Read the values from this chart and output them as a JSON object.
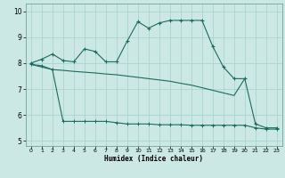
{
  "xlabel": "Humidex (Indice chaleur)",
  "background_color": "#cce8e4",
  "grid_color": "#aad4d0",
  "line_color": "#1a6b60",
  "xlim": [
    -0.5,
    23.5
  ],
  "ylim": [
    4.8,
    10.3
  ],
  "xticks": [
    0,
    1,
    2,
    3,
    4,
    5,
    6,
    7,
    8,
    9,
    10,
    11,
    12,
    13,
    14,
    15,
    16,
    17,
    18,
    19,
    20,
    21,
    22,
    23
  ],
  "yticks": [
    5,
    6,
    7,
    8,
    9,
    10
  ],
  "series1_x": [
    0,
    1,
    2,
    3,
    4,
    5,
    6,
    7,
    8,
    9,
    10,
    11,
    12,
    13,
    14,
    15,
    16,
    17,
    18,
    19,
    20,
    21,
    22,
    23
  ],
  "series1_y": [
    8.0,
    8.15,
    8.35,
    8.1,
    8.05,
    8.55,
    8.45,
    8.05,
    8.05,
    8.85,
    9.6,
    9.35,
    9.55,
    9.65,
    9.65,
    9.65,
    9.65,
    8.65,
    7.85,
    7.4,
    7.4,
    5.65,
    5.5,
    5.5
  ],
  "series2_x": [
    0,
    2,
    3,
    4,
    5,
    6,
    7,
    8,
    9,
    10,
    11,
    12,
    13,
    14,
    15,
    16,
    17,
    18,
    19,
    20
  ],
  "series2_y": [
    7.95,
    7.75,
    7.72,
    7.68,
    7.65,
    7.62,
    7.58,
    7.55,
    7.5,
    7.45,
    7.4,
    7.35,
    7.3,
    7.22,
    7.15,
    7.05,
    6.95,
    6.85,
    6.75,
    7.4
  ],
  "series3_x": [
    0,
    1,
    2,
    3,
    4,
    5,
    6,
    7,
    8,
    9,
    10,
    11,
    12,
    13,
    14,
    15,
    16,
    17,
    18,
    19,
    20,
    21,
    22,
    23
  ],
  "series3_y": [
    7.95,
    7.9,
    7.75,
    5.75,
    5.75,
    5.75,
    5.75,
    5.75,
    5.7,
    5.65,
    5.65,
    5.65,
    5.62,
    5.62,
    5.62,
    5.6,
    5.6,
    5.6,
    5.6,
    5.6,
    5.6,
    5.5,
    5.45,
    5.45
  ]
}
